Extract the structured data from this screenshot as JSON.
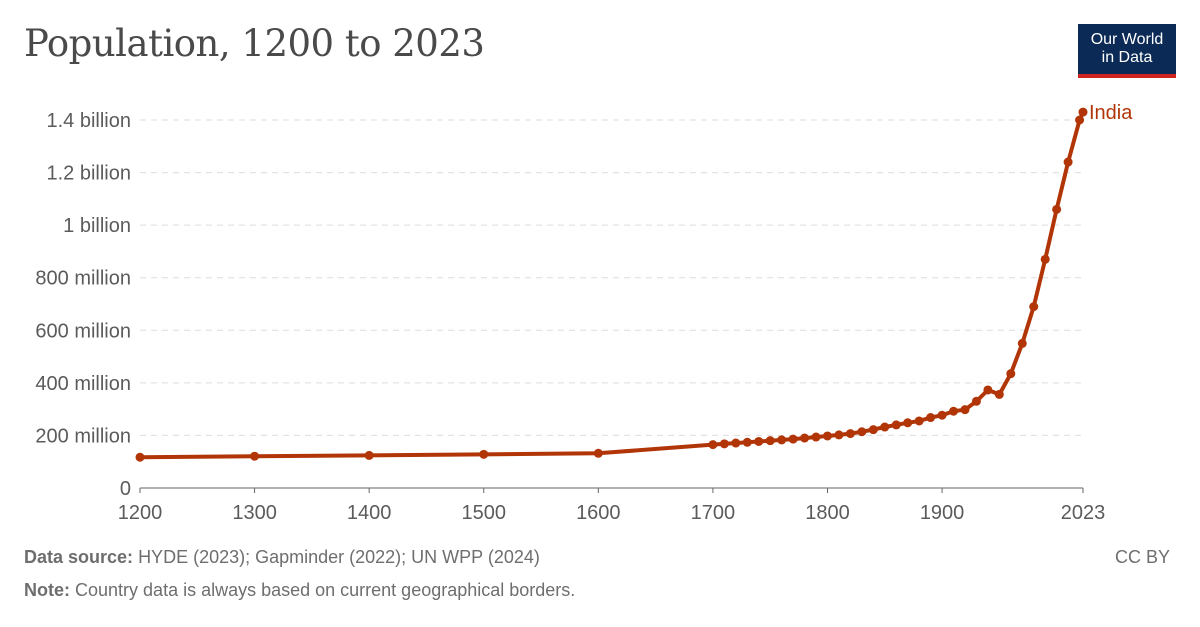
{
  "header": {
    "title": "Population, 1200 to 2023",
    "logo_line1": "Our World",
    "logo_line2": "in Data"
  },
  "footer": {
    "source_label": "Data source:",
    "source_text": "HYDE (2023); Gapminder (2022); UN WPP (2024)",
    "note_label": "Note:",
    "note_text": "Country data is always based on current geographical borders.",
    "license": "CC BY"
  },
  "colors": {
    "series": "#b13507",
    "grid": "#dddddd",
    "axis": "#666666"
  },
  "chart_data": {
    "type": "line",
    "title": "Population, 1200 to 2023",
    "xlabel": "",
    "ylabel": "",
    "xlim": [
      1200,
      2023
    ],
    "ylim": [
      0,
      1400000000
    ],
    "grid": "horizontal-dashed",
    "legend": "end-of-line label",
    "x_ticks": [
      1200,
      1300,
      1400,
      1500,
      1600,
      1700,
      1800,
      1900,
      2023
    ],
    "y_ticks": [
      {
        "value": 0,
        "label": "0"
      },
      {
        "value": 200000000,
        "label": "200 million"
      },
      {
        "value": 400000000,
        "label": "400 million"
      },
      {
        "value": 600000000,
        "label": "600 million"
      },
      {
        "value": 800000000,
        "label": "800 million"
      },
      {
        "value": 1000000000,
        "label": "1 billion"
      },
      {
        "value": 1200000000,
        "label": "1.2 billion"
      },
      {
        "value": 1400000000,
        "label": "1.4 billion"
      }
    ],
    "series": [
      {
        "name": "India",
        "points": [
          [
            1200,
            117000000
          ],
          [
            1300,
            121000000
          ],
          [
            1400,
            124000000
          ],
          [
            1500,
            128000000
          ],
          [
            1600,
            132000000
          ],
          [
            1700,
            165000000
          ],
          [
            1710,
            168000000
          ],
          [
            1720,
            171000000
          ],
          [
            1730,
            174000000
          ],
          [
            1740,
            177000000
          ],
          [
            1750,
            180000000
          ],
          [
            1760,
            183000000
          ],
          [
            1770,
            186000000
          ],
          [
            1780,
            190000000
          ],
          [
            1790,
            194000000
          ],
          [
            1800,
            198000000
          ],
          [
            1810,
            202000000
          ],
          [
            1820,
            207000000
          ],
          [
            1830,
            214000000
          ],
          [
            1840,
            222000000
          ],
          [
            1850,
            232000000
          ],
          [
            1860,
            240000000
          ],
          [
            1870,
            248000000
          ],
          [
            1880,
            255000000
          ],
          [
            1890,
            268000000
          ],
          [
            1900,
            277000000
          ],
          [
            1910,
            292000000
          ],
          [
            1920,
            298000000
          ],
          [
            1930,
            330000000
          ],
          [
            1940,
            373000000
          ],
          [
            1950,
            356000000
          ],
          [
            1960,
            435000000
          ],
          [
            1970,
            550000000
          ],
          [
            1980,
            690000000
          ],
          [
            1990,
            870000000
          ],
          [
            2000,
            1060000000
          ],
          [
            2010,
            1240000000
          ],
          [
            2020,
            1400000000
          ],
          [
            2023,
            1430000000
          ]
        ]
      }
    ]
  }
}
